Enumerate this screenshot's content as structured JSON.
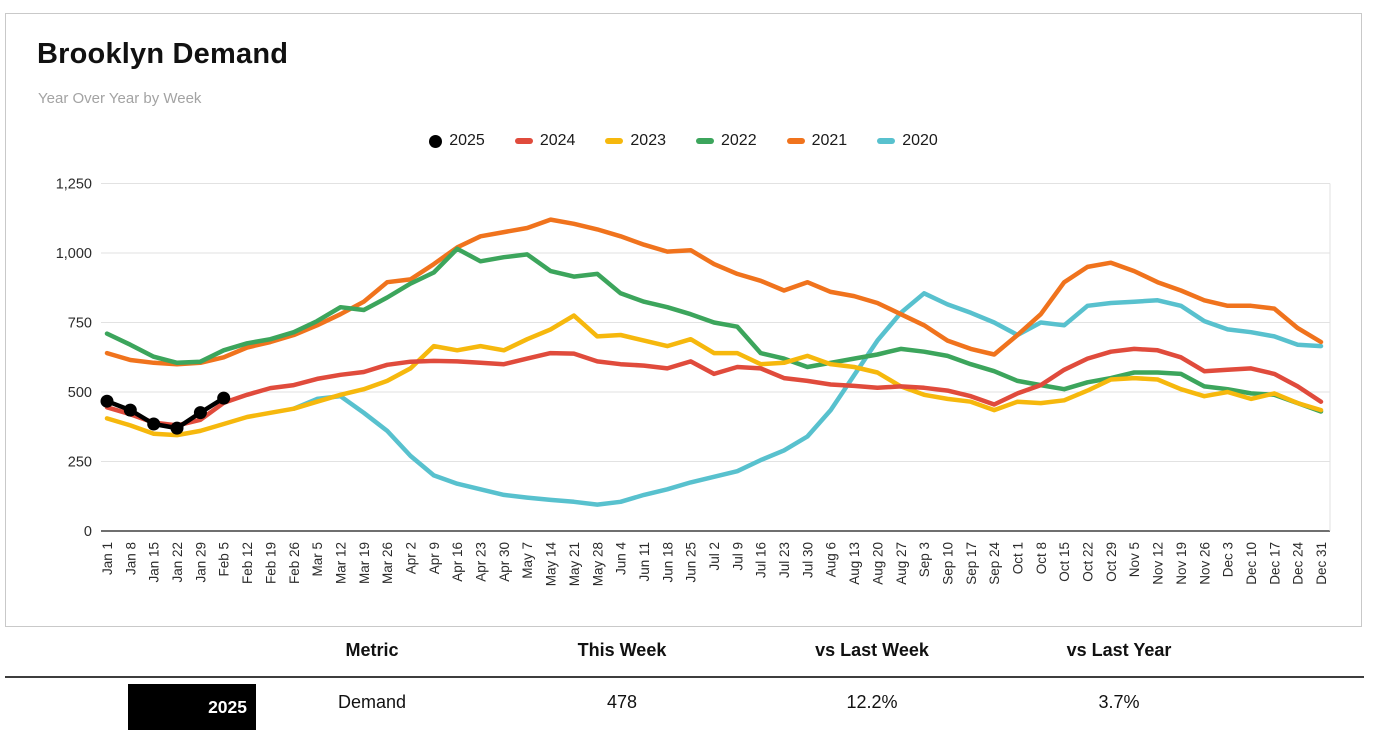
{
  "header": {
    "title": "Brooklyn Demand",
    "subtitle": "Year Over Year by Week"
  },
  "chart_data": {
    "type": "line",
    "title": "Brooklyn Demand",
    "subtitle": "Year Over Year by Week",
    "xlabel": "",
    "ylabel": "",
    "ylim": [
      0,
      1250
    ],
    "yticks": [
      0,
      250,
      500,
      750,
      1000,
      1250
    ],
    "ytick_labels": [
      "0",
      "250",
      "500",
      "750",
      "1,000",
      "1,250"
    ],
    "grid": true,
    "legend_position": "top",
    "x": [
      "Jan 1",
      "Jan 8",
      "Jan 15",
      "Jan 22",
      "Jan 29",
      "Feb 5",
      "Feb 12",
      "Feb 19",
      "Feb 26",
      "Mar 5",
      "Mar 12",
      "Mar 19",
      "Mar 26",
      "Apr 2",
      "Apr 9",
      "Apr 16",
      "Apr 23",
      "Apr 30",
      "May 7",
      "May 14",
      "May 21",
      "May 28",
      "Jun 4",
      "Jun 11",
      "Jun 18",
      "Jun 25",
      "Jul 2",
      "Jul 9",
      "Jul 16",
      "Jul 23",
      "Jul 30",
      "Aug 6",
      "Aug 13",
      "Aug 20",
      "Aug 27",
      "Sep 3",
      "Sep 10",
      "Sep 17",
      "Sep 24",
      "Oct 1",
      "Oct 8",
      "Oct 15",
      "Oct 22",
      "Oct 29",
      "Nov 5",
      "Nov 12",
      "Nov 19",
      "Nov 26",
      "Dec 3",
      "Dec 10",
      "Dec 17",
      "Dec 24",
      "Dec 31"
    ],
    "series": [
      {
        "name": "2020",
        "color": "#58C1CE",
        "style": "line",
        "values": [
          null,
          null,
          null,
          null,
          null,
          null,
          null,
          null,
          440,
          475,
          485,
          425,
          360,
          270,
          200,
          170,
          150,
          130,
          120,
          112,
          105,
          95,
          105,
          130,
          150,
          175,
          195,
          215,
          255,
          290,
          340,
          435,
          560,
          685,
          785,
          855,
          815,
          785,
          750,
          705,
          750,
          740,
          810,
          820,
          825,
          830,
          810,
          755,
          725,
          715,
          700,
          670,
          665
        ]
      },
      {
        "name": "2021",
        "color": "#F0731D",
        "style": "line",
        "values": [
          640,
          615,
          605,
          600,
          605,
          625,
          660,
          680,
          705,
          740,
          780,
          825,
          895,
          905,
          960,
          1020,
          1060,
          1075,
          1090,
          1120,
          1105,
          1085,
          1060,
          1030,
          1005,
          1010,
          960,
          925,
          900,
          865,
          895,
          860,
          845,
          820,
          780,
          740,
          685,
          655,
          635,
          705,
          780,
          895,
          950,
          965,
          935,
          895,
          865,
          830,
          810,
          810,
          800,
          730,
          680
        ]
      },
      {
        "name": "2022",
        "color": "#3CA55C",
        "style": "line",
        "values": [
          710,
          670,
          627,
          605,
          609,
          650,
          675,
          690,
          715,
          755,
          805,
          795,
          840,
          890,
          930,
          1015,
          970,
          985,
          995,
          935,
          915,
          925,
          855,
          825,
          805,
          780,
          750,
          735,
          640,
          620,
          590,
          605,
          620,
          635,
          655,
          645,
          630,
          600,
          575,
          540,
          525,
          510,
          535,
          550,
          570,
          570,
          565,
          520,
          510,
          495,
          490,
          460,
          430
        ]
      },
      {
        "name": "2023",
        "color": "#F6B80D",
        "style": "line",
        "values": [
          405,
          380,
          350,
          345,
          360,
          385,
          410,
          425,
          440,
          465,
          490,
          510,
          540,
          585,
          665,
          650,
          665,
          650,
          690,
          725,
          775,
          700,
          705,
          685,
          665,
          690,
          640,
          640,
          600,
          605,
          630,
          600,
          590,
          570,
          520,
          490,
          475,
          465,
          435,
          465,
          460,
          470,
          505,
          545,
          550,
          545,
          510,
          485,
          500,
          475,
          495,
          460,
          435
        ]
      },
      {
        "name": "2024",
        "color": "#E04B3C",
        "style": "line",
        "values": [
          445,
          420,
          390,
          380,
          400,
          461,
          490,
          514,
          525,
          547,
          562,
          572,
          598,
          609,
          612,
          610,
          605,
          600,
          620,
          640,
          638,
          610,
          600,
          595,
          585,
          610,
          565,
          590,
          585,
          550,
          540,
          527,
          522,
          515,
          520,
          515,
          505,
          485,
          455,
          495,
          525,
          580,
          620,
          645,
          655,
          650,
          625,
          575,
          580,
          585,
          565,
          520,
          465
        ]
      },
      {
        "name": "2025",
        "color": "#000000",
        "style": "line+dots",
        "values": [
          467,
          435,
          385,
          370,
          426,
          478,
          null,
          null,
          null,
          null,
          null,
          null,
          null,
          null,
          null,
          null,
          null,
          null,
          null,
          null,
          null,
          null,
          null,
          null,
          null,
          null,
          null,
          null,
          null,
          null,
          null,
          null,
          null,
          null,
          null,
          null,
          null,
          null,
          null,
          null,
          null,
          null,
          null,
          null,
          null,
          null,
          null,
          null,
          null,
          null,
          null,
          null,
          null
        ]
      }
    ],
    "legend_order": [
      "2025",
      "2024",
      "2023",
      "2022",
      "2021",
      "2020"
    ]
  },
  "table": {
    "row_header": "2025",
    "columns": [
      "Metric",
      "This Week",
      "vs Last Week",
      "vs Last Year"
    ],
    "rows": [
      {
        "metric": "Demand",
        "this_week": "478",
        "vs_last_week": "12.2%",
        "vs_last_year": "3.7%"
      }
    ]
  }
}
